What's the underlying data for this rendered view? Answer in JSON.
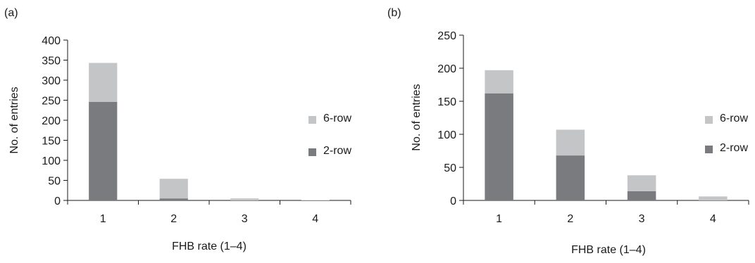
{
  "chart_data": [
    {
      "panel_label": "(a)",
      "type": "bar",
      "stacked": true,
      "categories": [
        "1",
        "2",
        "3",
        "4"
      ],
      "series": [
        {
          "name": "2-row",
          "values": [
            246,
            5,
            0,
            0
          ],
          "color": "#7a7b7e"
        },
        {
          "name": "6-row",
          "values": [
            97,
            49,
            5,
            1
          ],
          "color": "#c4c5c7"
        }
      ],
      "xlabel": "FHB rate (1–4)",
      "ylabel": "No. of entries",
      "ylim": [
        0,
        400
      ],
      "yticks": [
        "0",
        "50",
        "100",
        "150",
        "200",
        "250",
        "300",
        "350",
        "400"
      ],
      "grid": false,
      "legend_position": "right"
    },
    {
      "panel_label": "(b)",
      "type": "bar",
      "stacked": true,
      "categories": [
        "1",
        "2",
        "3",
        "4"
      ],
      "series": [
        {
          "name": "2-row",
          "values": [
            162,
            68,
            14,
            0
          ],
          "color": "#7a7b7e"
        },
        {
          "name": "6-row",
          "values": [
            35,
            39,
            24,
            6
          ],
          "color": "#c4c5c7"
        }
      ],
      "xlabel": "FHB rate (1–4)",
      "ylabel": "No. of entries",
      "ylim": [
        0,
        250
      ],
      "yticks": [
        "0",
        "50",
        "100",
        "150",
        "200",
        "250"
      ],
      "grid": false,
      "legend_position": "right"
    }
  ]
}
